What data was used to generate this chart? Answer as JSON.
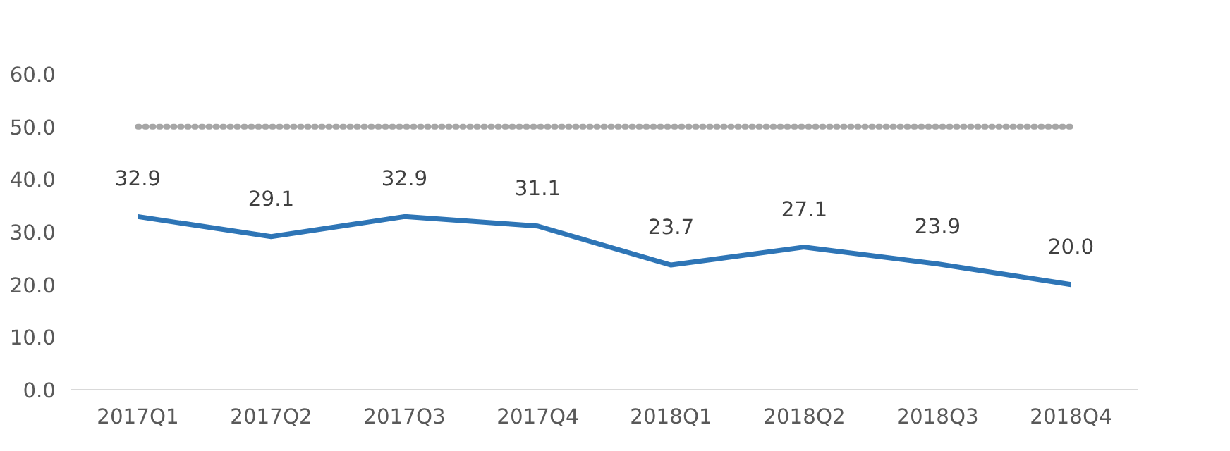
{
  "chart_data": {
    "type": "line",
    "categories": [
      "2017Q1",
      "2017Q2",
      "2017Q3",
      "2017Q4",
      "2018Q1",
      "2018Q2",
      "2018Q3",
      "2018Q4"
    ],
    "series": [
      {
        "color": "#2e75b6",
        "values": [
          32.9,
          29.1,
          32.9,
          31.1,
          23.7,
          27.1,
          23.9,
          20.0
        ],
        "value_labels": [
          "32.9",
          "29.1",
          "32.9",
          "31.1",
          "23.7",
          "27.1",
          "23.9",
          "20.0"
        ]
      },
      {
        "color": "#a6a6a6",
        "values": [
          50,
          50,
          50,
          50,
          50,
          50,
          50,
          50
        ],
        "line_style": "dotted"
      }
    ],
    "ylim": [
      0,
      60
    ],
    "yticks": [
      {
        "value": 0,
        "label": "0.0"
      },
      {
        "value": 10,
        "label": "10.0"
      },
      {
        "value": 20,
        "label": "20.0"
      },
      {
        "value": 30,
        "label": "30.0"
      },
      {
        "value": 40,
        "label": "40.0"
      },
      {
        "value": 50,
        "label": "50.0"
      },
      {
        "value": 60,
        "label": "60.0"
      }
    ],
    "grid": false,
    "marker": "none",
    "line_style": "solid"
  }
}
